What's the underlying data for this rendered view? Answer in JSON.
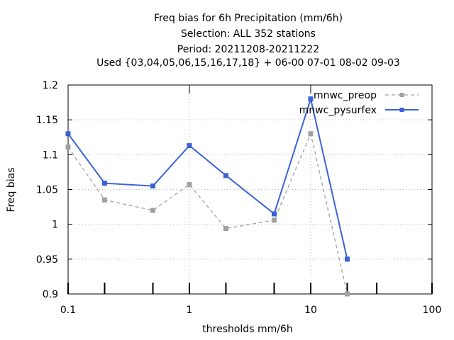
{
  "chart_data": {
    "type": "line",
    "title_lines": [
      "Freq bias  for 6h Precipitation (mm/6h)",
      "Selection: ALL     352 stations",
      "Period: 20211208-20211222",
      "Used {03,04,05,06,15,16,17,18} + 06-00 07-01 08-02 09-03"
    ],
    "xlabel": "thresholds mm/6h",
    "ylabel": "Freq bias",
    "x_scale": "log",
    "xlim": [
      0.1,
      100
    ],
    "ylim": [
      0.9,
      1.2
    ],
    "x_ticks": [
      0.1,
      1,
      10,
      100
    ],
    "x_tick_labels": [
      "0.1",
      "1",
      "10",
      "100"
    ],
    "y_ticks": [
      0.9,
      0.95,
      1.0,
      1.05,
      1.1,
      1.15,
      1.2
    ],
    "y_tick_labels": [
      "0.9",
      "0.95",
      "1",
      "1.05",
      "1.1",
      "1.15",
      "1.2"
    ],
    "grid": true,
    "legend_position": "top-right",
    "series": [
      {
        "name": "mnwc_preop",
        "color": "#a0a0a0",
        "dashed": true,
        "x": [
          0.1,
          0.2,
          0.5,
          1,
          2,
          5,
          10,
          20
        ],
        "values": [
          1.111,
          1.035,
          1.02,
          1.057,
          0.994,
          1.006,
          1.13,
          0.9
        ]
      },
      {
        "name": "mnwc_pysurfex",
        "color": "#3a62d8",
        "dashed": false,
        "x": [
          0.1,
          0.2,
          0.5,
          1,
          2,
          5,
          10,
          20
        ],
        "values": [
          1.13,
          1.059,
          1.055,
          1.113,
          1.07,
          1.015,
          1.18,
          0.95
        ]
      }
    ]
  }
}
